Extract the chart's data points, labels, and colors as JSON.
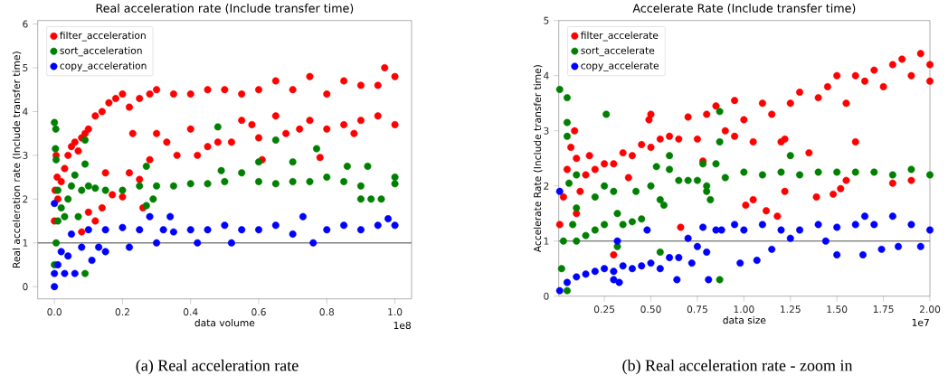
{
  "chart_data": [
    {
      "type": "scatter",
      "title": "Real acceleration rate (Include transfer time)",
      "xlabel": "data volume",
      "ylabel": "Real acceleration rate (Include transfer time)",
      "xlim": [
        -0.049,
        1.049
      ],
      "ylim": [
        -0.28,
        6.08
      ],
      "xticks": [
        {
          "value": 0,
          "label": "0.0"
        },
        {
          "value": 0.2,
          "label": "0.2"
        },
        {
          "value": 0.4,
          "label": "0.4"
        },
        {
          "value": 0.6,
          "label": "0.6"
        },
        {
          "value": 0.8,
          "label": "0.8"
        },
        {
          "value": 1,
          "label": "1.0"
        }
      ],
      "yticks": [
        0,
        1,
        2,
        3,
        4,
        5,
        6
      ],
      "legend": "top left",
      "ref_lines": [
        {
          "axis": "y",
          "value": 1,
          "color": "#808080"
        }
      ],
      "annotations": [
        "1e8",
        "(a) Real acceleration rate"
      ],
      "series": [
        {
          "name": "filter_acceleration",
          "color": "#ff0000",
          "x": [
            0.0,
            0.002,
            0.005,
            0.008,
            0.01,
            0.02,
            0.03,
            0.04,
            0.05,
            0.06,
            0.07,
            0.08,
            0.09,
            0.1,
            0.12,
            0.14,
            0.16,
            0.18,
            0.2,
            0.22,
            0.25,
            0.28,
            0.3,
            0.35,
            0.4,
            0.45,
            0.5,
            0.55,
            0.6,
            0.65,
            0.7,
            0.75,
            0.8,
            0.85,
            0.9,
            0.95,
            0.97,
            1.0,
            0.08,
            0.1,
            0.12,
            0.14,
            0.15,
            0.17,
            0.2,
            0.22,
            0.23,
            0.25,
            0.26,
            0.28,
            0.3,
            0.33,
            0.36,
            0.4,
            0.42,
            0.45,
            0.48,
            0.52,
            0.55,
            0.58,
            0.6,
            0.61,
            0.65,
            0.68,
            0.72,
            0.75,
            0.78,
            0.8,
            0.85,
            0.88,
            0.9,
            0.95,
            1.0
          ],
          "values": [
            1.5,
            2.2,
            3.0,
            2.5,
            2.0,
            2.4,
            2.7,
            3.0,
            3.2,
            3.3,
            3.1,
            3.4,
            3.5,
            3.6,
            3.9,
            4.0,
            4.2,
            4.3,
            4.4,
            4.1,
            4.3,
            4.4,
            4.5,
            4.4,
            4.4,
            4.5,
            4.5,
            4.4,
            4.5,
            4.7,
            4.5,
            4.8,
            4.4,
            4.7,
            4.6,
            4.6,
            5.0,
            4.8,
            1.25,
            1.7,
            1.5,
            1.8,
            2.6,
            2.1,
            2.05,
            2.6,
            3.5,
            2.45,
            1.8,
            2.9,
            3.5,
            3.3,
            3.0,
            3.6,
            3.0,
            3.2,
            3.3,
            3.3,
            3.8,
            3.7,
            3.4,
            2.9,
            3.9,
            3.5,
            3.6,
            3.8,
            2.95,
            3.6,
            3.7,
            3.5,
            3.8,
            3.9,
            3.7
          ]
        },
        {
          "name": "sort_acceleration",
          "color": "#008000",
          "x": [
            0.0,
            0.004,
            0.003,
            0.005,
            0.01,
            0.0,
            0.005,
            0.01,
            0.02,
            0.03,
            0.04,
            0.05,
            0.06,
            0.07,
            0.08,
            0.09,
            0.09,
            0.1,
            0.12,
            0.15,
            0.2,
            0.25,
            0.27,
            0.27,
            0.29,
            0.3,
            0.35,
            0.4,
            0.45,
            0.48,
            0.49,
            0.5,
            0.55,
            0.6,
            0.6,
            0.65,
            0.65,
            0.7,
            0.7,
            0.75,
            0.77,
            0.8,
            0.85,
            0.86,
            0.9,
            0.9,
            0.92,
            0.93,
            0.96,
            1.0,
            1.0,
            0.09
          ],
          "values": [
            3.75,
            3.6,
            3.15,
            2.9,
            2.2,
            0.5,
            1.0,
            1.5,
            1.8,
            1.6,
            2.0,
            2.3,
            2.55,
            1.6,
            2.2,
            3.35,
            2.8,
            2.3,
            2.25,
            2.2,
            2.2,
            2.3,
            1.85,
            2.75,
            2.0,
            2.3,
            2.3,
            2.35,
            2.35,
            3.65,
            2.65,
            2.4,
            2.6,
            2.4,
            2.85,
            2.35,
            3.35,
            2.4,
            2.85,
            2.4,
            3.15,
            2.5,
            2.4,
            2.75,
            2.3,
            2.0,
            2.75,
            2.0,
            2.0,
            2.5,
            2.35,
            0.3
          ]
        },
        {
          "name": "copy_acceleration",
          "color": "#0000ff",
          "x": [
            0.0,
            0.0,
            0.0,
            0.01,
            0.02,
            0.03,
            0.04,
            0.05,
            0.06,
            0.08,
            0.1,
            0.11,
            0.13,
            0.15,
            0.15,
            0.2,
            0.22,
            0.25,
            0.28,
            0.3,
            0.32,
            0.34,
            0.35,
            0.4,
            0.42,
            0.45,
            0.5,
            0.52,
            0.55,
            0.6,
            0.65,
            0.7,
            0.73,
            0.76,
            0.8,
            0.85,
            0.9,
            0.95,
            0.98,
            1.0
          ],
          "values": [
            0.0,
            0.3,
            1.9,
            0.5,
            0.8,
            0.3,
            0.7,
            1.2,
            0.3,
            0.9,
            1.3,
            0.6,
            0.9,
            0.8,
            1.3,
            1.35,
            0.9,
            1.3,
            1.6,
            1.0,
            1.3,
            1.6,
            1.25,
            1.3,
            1.0,
            1.3,
            1.4,
            1.0,
            1.3,
            1.3,
            1.4,
            1.2,
            1.6,
            1.0,
            1.3,
            1.4,
            1.3,
            1.4,
            1.55,
            1.4
          ]
        }
      ]
    },
    {
      "type": "scatter",
      "title": "Accelerate Rate (Include transfer time)",
      "xlabel": "data size",
      "ylabel": "Accelerate Rate (Include transfer time)",
      "xlim": [
        0.005,
        2.0
      ],
      "ylim": [
        0,
        5
      ],
      "xticks": [
        {
          "value": 0.25,
          "label": "0.25"
        },
        {
          "value": 0.5,
          "label": "0.50"
        },
        {
          "value": 0.75,
          "label": "0.75"
        },
        {
          "value": 1,
          "label": "1.00"
        },
        {
          "value": 1.25,
          "label": "1.25"
        },
        {
          "value": 1.5,
          "label": "1.50"
        },
        {
          "value": 1.75,
          "label": "1.75"
        },
        {
          "value": 2,
          "label": "2.00"
        }
      ],
      "yticks": [
        0,
        1,
        2,
        3,
        4,
        5
      ],
      "legend": "top left",
      "ref_lines": [
        {
          "axis": "y",
          "value": 1,
          "color": "#808080"
        }
      ],
      "annotations": [
        "1e7",
        "(b) Real acceleration rate - zoom in"
      ],
      "series": [
        {
          "name": "filter_accelerate",
          "color": "#ff0000",
          "x": [
            0.01,
            0.03,
            0.05,
            0.07,
            0.09,
            0.1,
            0.1,
            0.12,
            0.15,
            0.17,
            0.2,
            0.25,
            0.3,
            0.35,
            0.38,
            0.4,
            0.45,
            0.49,
            0.5,
            0.5,
            0.55,
            0.6,
            0.65,
            0.66,
            0.7,
            0.75,
            0.78,
            0.8,
            0.85,
            0.9,
            0.95,
            0.95,
            1.0,
            1.01,
            1.05,
            1.05,
            1.1,
            1.12,
            1.15,
            1.18,
            1.2,
            1.22,
            1.22,
            1.25,
            1.3,
            1.35,
            1.39,
            1.4,
            1.45,
            1.48,
            1.5,
            1.52,
            1.55,
            1.55,
            1.6,
            1.6,
            1.65,
            1.7,
            1.75,
            1.8,
            1.8,
            1.85,
            1.9,
            1.9,
            1.95,
            2.0,
            2.0,
            0.3
          ],
          "values": [
            1.3,
            1.8,
            2.3,
            2.7,
            3.0,
            2.5,
            1.5,
            1.9,
            2.2,
            2.55,
            2.3,
            2.4,
            2.4,
            2.6,
            2.15,
            2.55,
            2.75,
            3.2,
            2.7,
            3.3,
            2.85,
            2.9,
            2.85,
            1.25,
            3.25,
            2.85,
            2.45,
            3.3,
            3.45,
            3.0,
            3.55,
            2.9,
            3.2,
            1.65,
            1.75,
            2.8,
            3.5,
            1.55,
            3.3,
            1.45,
            2.8,
            2.85,
            1.9,
            3.5,
            3.7,
            2.6,
            1.8,
            3.6,
            3.8,
            1.85,
            4.0,
            1.95,
            2.1,
            3.5,
            2.8,
            4.0,
            3.9,
            4.1,
            3.8,
            2.05,
            4.2,
            4.3,
            2.1,
            4.0,
            4.4,
            4.2,
            3.9,
            0.75
          ]
        },
        {
          "name": "sort_accelerate",
          "color": "#008000",
          "x": [
            0.01,
            0.05,
            0.05,
            0.05,
            0.06,
            0.1,
            0.1,
            0.02,
            0.03,
            0.05,
            0.08,
            0.1,
            0.15,
            0.2,
            0.25,
            0.26,
            0.25,
            0.2,
            0.3,
            0.32,
            0.32,
            0.35,
            0.4,
            0.42,
            0.45,
            0.5,
            0.53,
            0.55,
            0.55,
            0.57,
            0.6,
            0.6,
            0.65,
            0.7,
            0.75,
            0.78,
            0.8,
            0.8,
            0.82,
            0.85,
            0.87,
            0.87,
            0.87,
            0.9,
            1.0,
            1.1,
            1.2,
            1.25,
            1.3,
            1.4,
            1.5,
            1.6,
            1.7,
            1.8,
            1.9,
            2.0
          ],
          "values": [
            3.75,
            3.6,
            3.15,
            2.9,
            2.05,
            2.2,
            1.6,
            0.5,
            1.0,
            0.1,
            1.3,
            1.0,
            1.1,
            1.2,
            1.3,
            3.3,
            2.0,
            1.8,
            1.9,
            1.5,
            0.9,
            1.3,
            1.35,
            1.9,
            1.4,
            2.0,
            2.35,
            1.75,
            0.8,
            1.65,
            2.55,
            2.3,
            2.1,
            2.1,
            2.1,
            2.4,
            2.0,
            1.9,
            1.75,
            2.4,
            3.35,
            2.8,
            0.3,
            2.15,
            2.25,
            2.2,
            2.25,
            2.55,
            2.2,
            2.25,
            2.25,
            2.25,
            2.25,
            2.2,
            2.3,
            2.2
          ]
        },
        {
          "name": "copy_accelerate",
          "color": "#0000ff",
          "x": [
            0.01,
            0.01,
            0.05,
            0.1,
            0.15,
            0.2,
            0.25,
            0.3,
            0.32,
            0.3,
            0.33,
            0.35,
            0.4,
            0.45,
            0.48,
            0.5,
            0.55,
            0.6,
            0.64,
            0.65,
            0.7,
            0.72,
            0.75,
            0.78,
            0.8,
            0.81,
            0.85,
            0.88,
            0.95,
            0.98,
            1.0,
            1.07,
            1.1,
            1.15,
            1.2,
            1.25,
            1.3,
            1.4,
            1.44,
            1.5,
            1.5,
            1.6,
            1.64,
            1.65,
            1.7,
            1.74,
            1.8,
            1.83,
            1.9,
            1.95,
            2.0
          ],
          "values": [
            1.9,
            0.1,
            0.25,
            0.35,
            0.4,
            0.45,
            0.5,
            0.45,
            1.0,
            0.3,
            0.25,
            0.55,
            0.5,
            0.55,
            1.2,
            0.6,
            0.5,
            0.7,
            0.3,
            0.7,
            1.05,
            0.6,
            0.9,
            1.25,
            0.8,
            0.3,
            1.2,
            1.2,
            1.3,
            0.6,
            1.2,
            0.65,
            1.3,
            0.85,
            1.2,
            1.05,
            1.2,
            1.3,
            1.0,
            1.25,
            0.75,
            1.3,
            0.75,
            1.45,
            1.3,
            0.85,
            1.45,
            0.9,
            1.3,
            0.9,
            1.2
          ]
        }
      ]
    }
  ]
}
